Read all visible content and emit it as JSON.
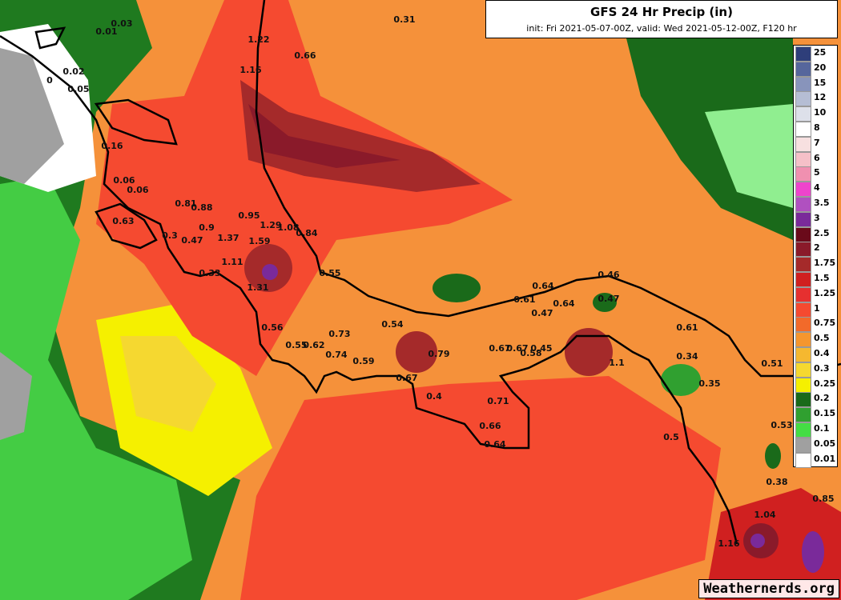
{
  "header": {
    "title": "GFS 24 Hr Precip (in)",
    "subtitle": "init: Fri 2021-05-07-00Z, valid: Wed 2021-05-12-00Z, F120 hr"
  },
  "legend": {
    "levels": [
      {
        "label": "25",
        "color": "#2e3e7a"
      },
      {
        "label": "20",
        "color": "#56669c"
      },
      {
        "label": "15",
        "color": "#8894bb"
      },
      {
        "label": "12",
        "color": "#b5bdd4"
      },
      {
        "label": "10",
        "color": "#dde0ea"
      },
      {
        "label": "8",
        "color": "#ffffff"
      },
      {
        "label": "7",
        "color": "#f7e0e0"
      },
      {
        "label": "6",
        "color": "#f5c0c8"
      },
      {
        "label": "5",
        "color": "#f090b0"
      },
      {
        "label": "4",
        "color": "#ee44cc"
      },
      {
        "label": "3.5",
        "color": "#b050c0"
      },
      {
        "label": "3",
        "color": "#7a2a9a"
      },
      {
        "label": "2.5",
        "color": "#6a0a1a"
      },
      {
        "label": "2",
        "color": "#8a1a2a"
      },
      {
        "label": "1.75",
        "color": "#a52a2a"
      },
      {
        "label": "1.5",
        "color": "#d02020"
      },
      {
        "label": "1.25",
        "color": "#e63030"
      },
      {
        "label": "1",
        "color": "#f54a30"
      },
      {
        "label": "0.75",
        "color": "#f26a2a"
      },
      {
        "label": "0.5",
        "color": "#f5962e"
      },
      {
        "label": "0.4",
        "color": "#f5b830"
      },
      {
        "label": "0.3",
        "color": "#f5d830"
      },
      {
        "label": "0.25",
        "color": "#f5f000"
      },
      {
        "label": "0.2",
        "color": "#1a6a1a"
      },
      {
        "label": "0.15",
        "color": "#30a030"
      },
      {
        "label": "0.1",
        "color": "#44dd44"
      },
      {
        "label": "0.05",
        "color": "#a0a0a0"
      },
      {
        "label": "0.01",
        "color": "#ffffff"
      }
    ]
  },
  "map": {
    "labels": [
      "0.03",
      "0.01",
      "0.31",
      "1.22",
      "0.66",
      "1.16",
      "0.02",
      "0",
      "0.05",
      "0.16",
      "0.06",
      "0.06",
      "0.81",
      "0.88",
      "0.95",
      "1.29",
      "1.08",
      "0.63",
      "0.9",
      "0.84",
      "1.37",
      "1.59",
      "0.3",
      "0.47",
      "1.11",
      "0.33",
      "1.31",
      "0.55",
      "0.64",
      "0.61",
      "0.64",
      "0.47",
      "0.46",
      "0.47",
      "0.56",
      "0.54",
      "0.61",
      "0.73",
      "0.55",
      "0.62",
      "0.74",
      "0.79",
      "0.67",
      "0.67",
      "0.58",
      "0.45",
      "0.34",
      "1.1",
      "0.59",
      "0.51",
      "0.35",
      "0.67",
      "0.4",
      "0.71",
      "0.65",
      "0.66",
      "0.53",
      "0.5",
      "0.64",
      "0.38",
      "1.04",
      "0.85",
      "1.16"
    ]
  },
  "watermark": "Weathernerds.org"
}
